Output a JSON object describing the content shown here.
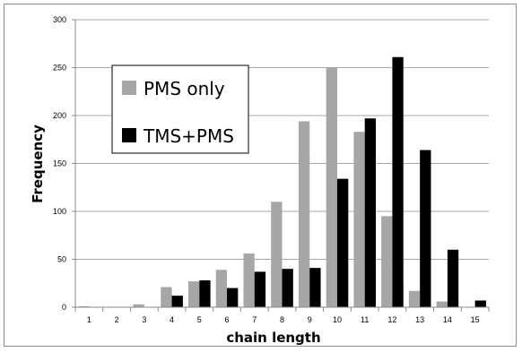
{
  "chart_data": {
    "type": "bar",
    "xlabel": "chain length",
    "ylabel": "Frequency",
    "categories": [
      "1",
      "2",
      "3",
      "4",
      "5",
      "6",
      "7",
      "8",
      "9",
      "10",
      "11",
      "12",
      "13",
      "14",
      "15"
    ],
    "ylim": [
      0,
      300
    ],
    "yticks": [
      "0",
      "50",
      "100",
      "150",
      "200",
      "250",
      "300"
    ],
    "grid": true,
    "legend_position": "upper-left inside",
    "series": [
      {
        "name": "PMS only",
        "color": "#a6a6a6",
        "values": [
          1,
          0,
          3,
          21,
          27,
          39,
          56,
          110,
          194,
          250,
          183,
          95,
          17,
          6,
          0
        ]
      },
      {
        "name": "TMS+PMS",
        "color": "#000000",
        "values": [
          0,
          0,
          0,
          12,
          28,
          20,
          37,
          40,
          41,
          134,
          197,
          261,
          164,
          60,
          7
        ]
      }
    ]
  }
}
